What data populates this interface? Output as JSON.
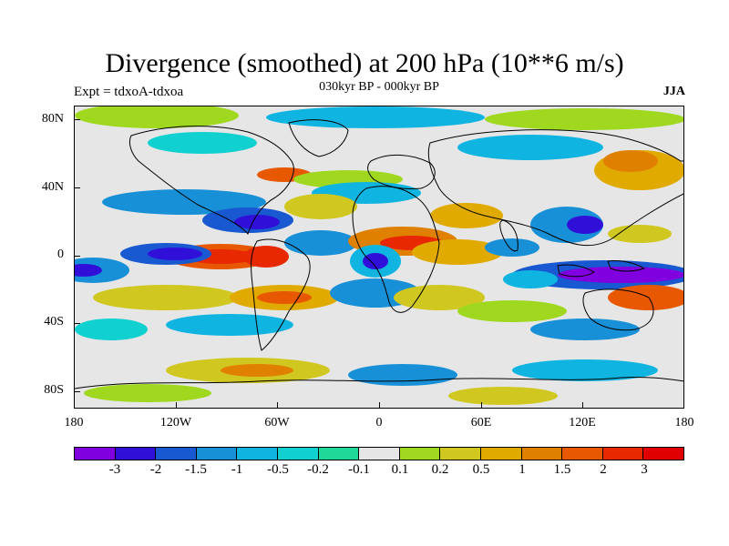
{
  "header": {
    "title": "Divergence (smoothed) at 200 hPa (10**6 m/s)",
    "experiment": "Expt = tdxoA-tdxoa",
    "period": "030kyr BP - 000kyr BP",
    "season": "JJA"
  },
  "map": {
    "lat_labels": [
      "80N",
      "40N",
      "0",
      "40S",
      "80S"
    ],
    "lon_labels": [
      "180",
      "120W",
      "60W",
      "0",
      "60E",
      "120E",
      "180"
    ],
    "lat_range": [
      -90,
      90
    ],
    "lon_range": [
      -180,
      180
    ],
    "palette": [
      "#8000e0",
      "#3010d8",
      "#1858d0",
      "#1890d8",
      "#10b4e0",
      "#10d0d0",
      "#20d898",
      "#e6e6e6",
      "#a0d820",
      "#d0c820",
      "#e0aa00",
      "#e08000",
      "#e85800",
      "#e82800",
      "#e00000"
    ]
  },
  "colorbar": {
    "labels": [
      "-3",
      "-2",
      "-1.5",
      "-1",
      "-0.5",
      "-0.2",
      "-0.1",
      "0.1",
      "0.2",
      "0.5",
      "1",
      "1.5",
      "2",
      "3"
    ]
  }
}
